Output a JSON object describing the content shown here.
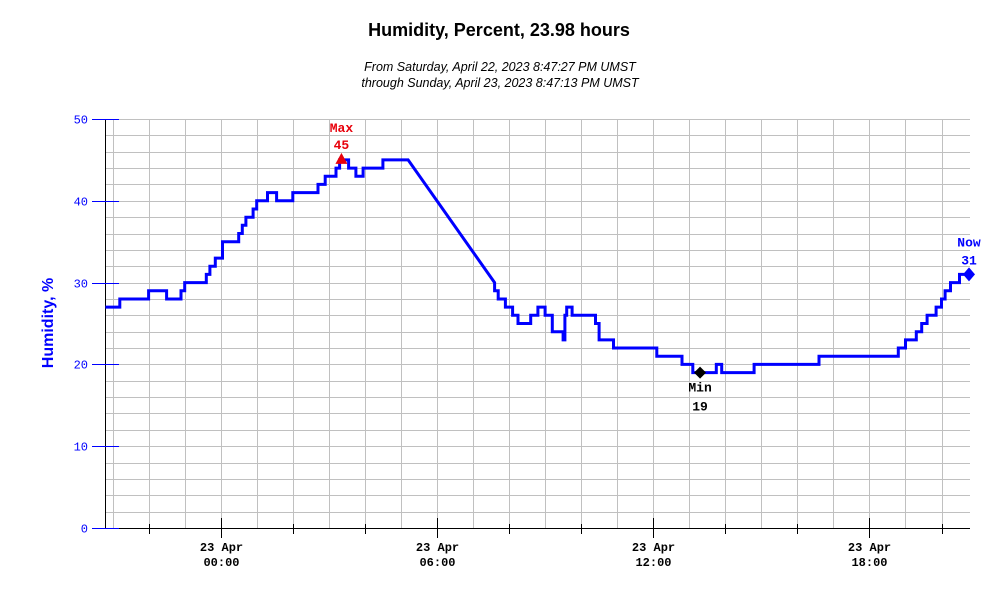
{
  "chart_data": {
    "type": "line",
    "title": "Humidity, Percent, 23.98 hours",
    "subtitle_line1": "From Saturday, April 22, 2023 8:47:27 PM UMST",
    "subtitle_line2": "through Sunday, April 23, 2023 8:47:13 PM UMST",
    "ylabel": "Humidity, %",
    "xlabel": "",
    "ylim": [
      0,
      50
    ],
    "y_ticks": [
      "0",
      "10",
      "20",
      "30",
      "40",
      "50"
    ],
    "x_ticks": [
      {
        "hour": 0,
        "date": "23 Apr",
        "time": "00:00"
      },
      {
        "hour": 6,
        "date": "23 Apr",
        "time": "06:00"
      },
      {
        "hour": 12,
        "date": "23 Apr",
        "time": "12:00"
      },
      {
        "hour": 18,
        "date": "23 Apr",
        "time": "18:00"
      }
    ],
    "x_unit": "hours relative to 23 Apr 00:00",
    "xlim": [
      -3.21,
      20.79
    ],
    "grid": true,
    "colors": {
      "line": "#0000ff",
      "max": "#e8000b",
      "min": "#000000",
      "now": "#0000ff",
      "grid": "#c0c0c0"
    },
    "series": [
      {
        "name": "Humidity",
        "points": [
          [
            -3.2,
            27
          ],
          [
            -2.8,
            27
          ],
          [
            -2.8,
            28
          ],
          [
            -2.0,
            28
          ],
          [
            -2.0,
            29
          ],
          [
            -1.5,
            29
          ],
          [
            -1.5,
            28
          ],
          [
            -1.1,
            28
          ],
          [
            -1.1,
            29
          ],
          [
            -1.0,
            29
          ],
          [
            -1.0,
            30
          ],
          [
            -0.4,
            30
          ],
          [
            -0.4,
            31
          ],
          [
            -0.3,
            31
          ],
          [
            -0.3,
            32
          ],
          [
            -0.15,
            32
          ],
          [
            -0.15,
            33
          ],
          [
            0.05,
            33
          ],
          [
            0.05,
            35
          ],
          [
            0.5,
            35
          ],
          [
            0.5,
            36
          ],
          [
            0.6,
            36
          ],
          [
            0.6,
            37
          ],
          [
            0.7,
            37
          ],
          [
            0.7,
            38
          ],
          [
            0.9,
            38
          ],
          [
            0.9,
            39
          ],
          [
            1.0,
            39
          ],
          [
            1.0,
            40
          ],
          [
            1.3,
            40
          ],
          [
            1.3,
            41
          ],
          [
            1.55,
            41
          ],
          [
            1.55,
            40
          ],
          [
            2.0,
            40
          ],
          [
            2.0,
            41
          ],
          [
            2.7,
            41
          ],
          [
            2.7,
            42
          ],
          [
            2.9,
            42
          ],
          [
            2.9,
            43
          ],
          [
            3.2,
            43
          ],
          [
            3.2,
            44
          ],
          [
            3.3,
            44
          ],
          [
            3.3,
            45
          ],
          [
            3.55,
            45
          ],
          [
            3.55,
            44
          ],
          [
            3.75,
            44
          ],
          [
            3.75,
            43
          ],
          [
            3.95,
            43
          ],
          [
            3.95,
            44
          ],
          [
            4.5,
            44
          ],
          [
            4.5,
            45
          ],
          [
            5.2,
            45
          ],
          [
            7.6,
            30
          ],
          [
            7.6,
            29
          ],
          [
            7.7,
            29
          ],
          [
            7.7,
            28
          ],
          [
            7.9,
            28
          ],
          [
            7.9,
            27
          ],
          [
            8.1,
            27
          ],
          [
            8.1,
            26
          ],
          [
            8.25,
            26
          ],
          [
            8.25,
            25
          ],
          [
            8.6,
            25
          ],
          [
            8.6,
            26
          ],
          [
            8.8,
            26
          ],
          [
            8.8,
            27
          ],
          [
            9.0,
            27
          ],
          [
            9.0,
            26
          ],
          [
            9.2,
            26
          ],
          [
            9.2,
            24
          ],
          [
            9.5,
            24
          ],
          [
            9.5,
            23
          ],
          [
            9.55,
            23
          ],
          [
            9.55,
            26
          ],
          [
            9.6,
            26
          ],
          [
            9.6,
            27
          ],
          [
            9.75,
            27
          ],
          [
            9.75,
            26
          ],
          [
            10.4,
            26
          ],
          [
            10.4,
            25
          ],
          [
            10.5,
            25
          ],
          [
            10.5,
            23
          ],
          [
            10.9,
            23
          ],
          [
            10.9,
            22
          ],
          [
            11.1,
            22
          ],
          [
            11.1,
            22
          ],
          [
            12.1,
            22
          ],
          [
            12.1,
            21
          ],
          [
            12.8,
            21
          ],
          [
            12.8,
            20
          ],
          [
            13.1,
            20
          ],
          [
            13.1,
            19
          ],
          [
            13.75,
            19
          ],
          [
            13.75,
            20
          ],
          [
            13.9,
            20
          ],
          [
            13.9,
            19
          ],
          [
            14.8,
            19
          ],
          [
            14.8,
            20
          ],
          [
            16.6,
            20
          ],
          [
            16.6,
            21
          ],
          [
            18.8,
            21
          ],
          [
            18.8,
            22
          ],
          [
            19.0,
            22
          ],
          [
            19.0,
            23
          ],
          [
            19.3,
            23
          ],
          [
            19.3,
            24
          ],
          [
            19.45,
            24
          ],
          [
            19.45,
            25
          ],
          [
            19.6,
            25
          ],
          [
            19.6,
            26
          ],
          [
            19.85,
            26
          ],
          [
            19.85,
            27
          ],
          [
            20.0,
            27
          ],
          [
            20.0,
            28
          ],
          [
            20.1,
            28
          ],
          [
            20.1,
            29
          ],
          [
            20.25,
            29
          ],
          [
            20.25,
            30
          ],
          [
            20.5,
            30
          ],
          [
            20.5,
            31
          ],
          [
            20.79,
            31
          ]
        ]
      }
    ],
    "annotations": {
      "max": {
        "label": "Max",
        "value": "45",
        "hour": 3.35,
        "y": 45
      },
      "min": {
        "label": "Min",
        "value": "19",
        "hour": 13.3,
        "y": 19
      },
      "now": {
        "label": "Now",
        "value": "31",
        "hour": 20.79,
        "y": 31
      }
    }
  }
}
